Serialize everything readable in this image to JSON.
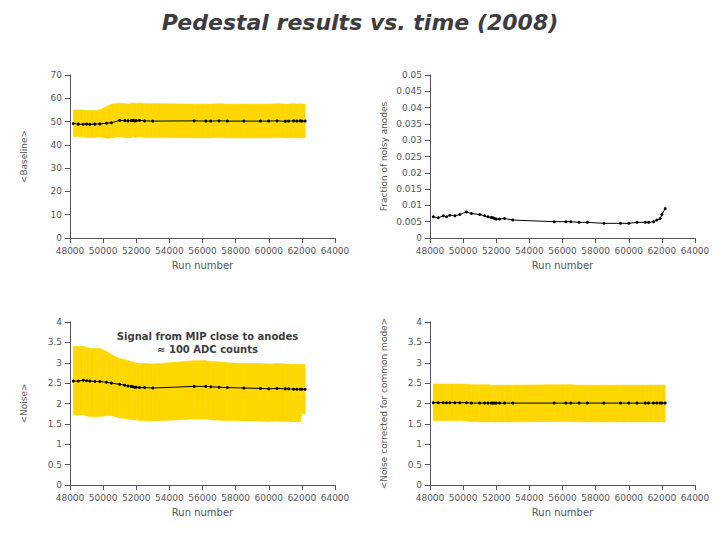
{
  "title": "Pedestal results vs. time (2008)",
  "chart_data": [
    {
      "type": "line",
      "xlabel": "Run number",
      "ylabel": "<Baseline>",
      "xlim": [
        48000,
        64000
      ],
      "xticks": [
        48000,
        50000,
        52000,
        54000,
        56000,
        58000,
        60000,
        62000,
        64000
      ],
      "ylim": [
        0,
        70
      ],
      "yticks": [
        0,
        10,
        20,
        30,
        40,
        50,
        60,
        70
      ],
      "grid": false,
      "x": [
        48200,
        48500,
        48800,
        49000,
        49200,
        49500,
        49800,
        50200,
        50500,
        51000,
        51300,
        51500,
        51700,
        51800,
        51900,
        52000,
        52200,
        52500,
        53000,
        55500,
        56200,
        56500,
        57000,
        57500,
        58500,
        59500,
        60000,
        60500,
        61000,
        61200,
        61500,
        61700,
        61900,
        62000,
        62200
      ],
      "series": [
        {
          "type": "band",
          "color": "#FFD700",
          "upper": [
            55.0,
            55.0,
            55.0,
            54.8,
            54.8,
            54.8,
            55.0,
            56.5,
            57.5,
            58.0,
            57.8,
            57.5,
            57.8,
            58.0,
            57.8,
            57.8,
            58.0,
            57.8,
            57.7,
            57.5,
            57.5,
            57.5,
            57.7,
            57.5,
            57.5,
            57.5,
            57.5,
            57.7,
            57.5,
            57.5,
            57.7,
            57.5,
            57.7,
            57.5,
            57.5
          ],
          "lower": [
            43.5,
            43.5,
            43.5,
            43.2,
            43.2,
            43.2,
            43.5,
            42.8,
            43.0,
            43.5,
            43.2,
            43.0,
            43.2,
            43.5,
            43.2,
            43.2,
            43.5,
            43.2,
            43.2,
            43.0,
            43.0,
            43.0,
            43.2,
            43.0,
            43.0,
            43.0,
            43.0,
            43.2,
            43.0,
            43.0,
            43.2,
            43.0,
            43.2,
            43.0,
            43.0
          ]
        },
        {
          "type": "line",
          "color": "#000000",
          "marker": "circle",
          "values": [
            49.2,
            48.9,
            48.8,
            48.9,
            48.8,
            48.9,
            49.0,
            49.3,
            49.5,
            50.5,
            50.4,
            50.3,
            50.4,
            50.5,
            50.3,
            50.4,
            50.5,
            50.3,
            50.2,
            50.3,
            50.2,
            50.2,
            50.3,
            50.2,
            50.2,
            50.2,
            50.2,
            50.3,
            50.1,
            50.2,
            50.3,
            50.2,
            50.3,
            50.2,
            50.2
          ]
        }
      ]
    },
    {
      "type": "line",
      "xlabel": "Run number",
      "ylabel": "Fraction of noisy anodes",
      "xlim": [
        48000,
        64000
      ],
      "xticks": [
        48000,
        50000,
        52000,
        54000,
        56000,
        58000,
        60000,
        62000,
        64000
      ],
      "ylim": [
        0,
        0.05
      ],
      "yticks": [
        0,
        0.005,
        0.01,
        0.015,
        0.02,
        0.025,
        0.03,
        0.035,
        0.04,
        0.045,
        0.05
      ],
      "grid": false,
      "x": [
        48200,
        48500,
        48800,
        49000,
        49200,
        49500,
        49800,
        50200,
        50500,
        51000,
        51300,
        51500,
        51700,
        51800,
        51900,
        52000,
        52200,
        52500,
        53000,
        55500,
        56200,
        56500,
        57000,
        57500,
        58500,
        59500,
        60000,
        60500,
        61000,
        61200,
        61500,
        61700,
        61900,
        62000,
        62200
      ],
      "series": [
        {
          "type": "line",
          "color": "#000000",
          "marker": "circle",
          "values": [
            0.0065,
            0.0062,
            0.0068,
            0.0065,
            0.007,
            0.0068,
            0.0072,
            0.008,
            0.0075,
            0.0072,
            0.0068,
            0.0065,
            0.0063,
            0.0062,
            0.006,
            0.0058,
            0.0058,
            0.006,
            0.0055,
            0.005,
            0.005,
            0.005,
            0.0048,
            0.0048,
            0.0045,
            0.0045,
            0.0045,
            0.0048,
            0.0048,
            0.0048,
            0.005,
            0.0055,
            0.006,
            0.0072,
            0.009
          ]
        }
      ]
    },
    {
      "type": "line",
      "xlabel": "Run number",
      "ylabel": "<Noise>",
      "annotation": "Signal from MIP close to anodes\n≈ 100 ADC counts",
      "xlim": [
        48000,
        64000
      ],
      "xticks": [
        48000,
        50000,
        52000,
        54000,
        56000,
        58000,
        60000,
        62000,
        64000
      ],
      "ylim": [
        0,
        4
      ],
      "yticks": [
        0,
        0.5,
        1,
        1.5,
        2,
        2.5,
        3,
        3.5,
        4
      ],
      "grid": false,
      "x": [
        48200,
        48500,
        48800,
        49000,
        49200,
        49500,
        49800,
        50200,
        50500,
        51000,
        51300,
        51500,
        51700,
        51800,
        51900,
        52000,
        52200,
        52500,
        53000,
        55500,
        56200,
        56500,
        57000,
        57500,
        58500,
        59500,
        60000,
        60500,
        61000,
        61200,
        61500,
        61700,
        61900,
        62000,
        62200
      ],
      "series": [
        {
          "type": "band",
          "color": "#FFD700",
          "upper": [
            3.4,
            3.4,
            3.4,
            3.38,
            3.35,
            3.35,
            3.35,
            3.28,
            3.2,
            3.1,
            3.08,
            3.05,
            3.03,
            3.02,
            3.0,
            3.0,
            2.98,
            2.98,
            2.97,
            3.05,
            3.05,
            3.03,
            3.02,
            3.0,
            2.98,
            2.98,
            2.97,
            2.98,
            2.97,
            2.97,
            2.96,
            2.96,
            2.96,
            2.96,
            2.96
          ],
          "lower": [
            1.72,
            1.72,
            1.72,
            1.7,
            1.68,
            1.68,
            1.68,
            1.7,
            1.7,
            1.65,
            1.63,
            1.62,
            1.61,
            1.6,
            1.6,
            1.6,
            1.58,
            1.58,
            1.57,
            1.62,
            1.62,
            1.6,
            1.59,
            1.58,
            1.57,
            1.57,
            1.56,
            1.57,
            1.56,
            1.56,
            1.55,
            1.55,
            1.55,
            1.75,
            1.75
          ]
        },
        {
          "type": "line",
          "color": "#000000",
          "marker": "circle",
          "values": [
            2.55,
            2.55,
            2.57,
            2.56,
            2.55,
            2.54,
            2.54,
            2.52,
            2.5,
            2.47,
            2.45,
            2.43,
            2.42,
            2.41,
            2.4,
            2.4,
            2.39,
            2.39,
            2.38,
            2.42,
            2.42,
            2.41,
            2.4,
            2.39,
            2.38,
            2.37,
            2.36,
            2.37,
            2.36,
            2.36,
            2.35,
            2.35,
            2.35,
            2.35,
            2.35
          ]
        }
      ]
    },
    {
      "type": "line",
      "xlabel": "Run number",
      "ylabel": "<Noise corrected for common mode>",
      "xlim": [
        48000,
        64000
      ],
      "xticks": [
        48000,
        50000,
        52000,
        54000,
        56000,
        58000,
        60000,
        62000,
        64000
      ],
      "ylim": [
        0,
        4
      ],
      "yticks": [
        0,
        0.5,
        1,
        1.5,
        2,
        2.5,
        3,
        3.5,
        4
      ],
      "grid": false,
      "x": [
        48200,
        48500,
        48800,
        49000,
        49200,
        49500,
        49800,
        50200,
        50500,
        51000,
        51300,
        51500,
        51700,
        51800,
        51900,
        52000,
        52200,
        52500,
        53000,
        55500,
        56200,
        56500,
        57000,
        57500,
        58500,
        59500,
        60000,
        60500,
        61000,
        61200,
        61500,
        61700,
        61900,
        62000,
        62200
      ],
      "series": [
        {
          "type": "band",
          "color": "#FFD700",
          "upper": [
            2.48,
            2.48,
            2.48,
            2.48,
            2.48,
            2.48,
            2.48,
            2.47,
            2.46,
            2.46,
            2.46,
            2.46,
            2.45,
            2.45,
            2.45,
            2.45,
            2.45,
            2.45,
            2.45,
            2.46,
            2.46,
            2.46,
            2.45,
            2.45,
            2.45,
            2.45,
            2.45,
            2.45,
            2.45,
            2.45,
            2.45,
            2.45,
            2.45,
            2.45,
            2.45
          ],
          "lower": [
            1.58,
            1.58,
            1.58,
            1.58,
            1.58,
            1.58,
            1.58,
            1.57,
            1.56,
            1.55,
            1.55,
            1.55,
            1.55,
            1.55,
            1.55,
            1.55,
            1.55,
            1.55,
            1.55,
            1.56,
            1.56,
            1.56,
            1.55,
            1.55,
            1.55,
            1.55,
            1.55,
            1.55,
            1.55,
            1.55,
            1.55,
            1.55,
            1.55,
            1.55,
            1.55
          ]
        },
        {
          "type": "line",
          "color": "#000000",
          "marker": "circle",
          "values": [
            2.02,
            2.02,
            2.02,
            2.02,
            2.02,
            2.02,
            2.02,
            2.02,
            2.01,
            2.01,
            2.01,
            2.01,
            2.01,
            2.01,
            2.01,
            2.01,
            2.01,
            2.01,
            2.01,
            2.01,
            2.01,
            2.01,
            2.01,
            2.01,
            2.01,
            2.01,
            2.01,
            2.01,
            2.01,
            2.01,
            2.01,
            2.01,
            2.01,
            2.01,
            2.01
          ]
        }
      ]
    }
  ]
}
